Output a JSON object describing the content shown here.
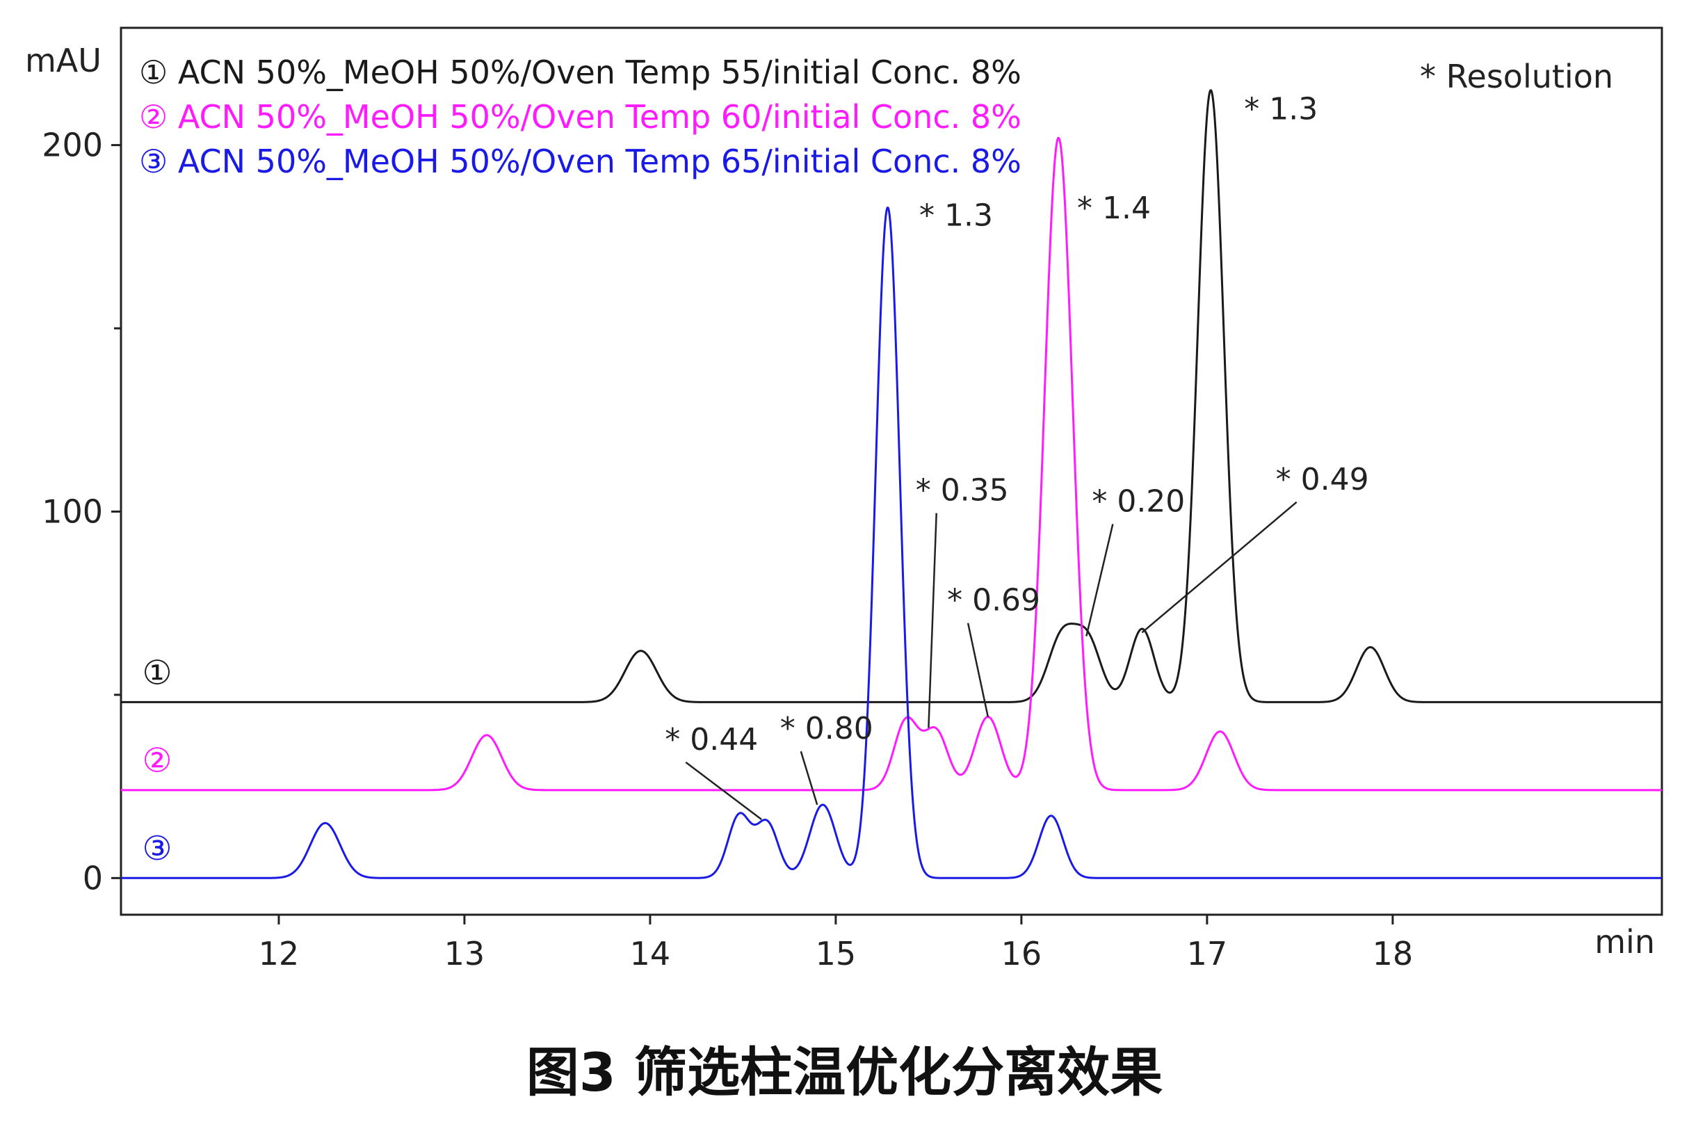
{
  "caption": "图3 筛选柱温优化分离效果",
  "chart_data": {
    "type": "line",
    "title": "",
    "xlabel": "min",
    "ylabel": "mAU",
    "xlim": [
      11.15,
      19.45
    ],
    "ylim": [
      -10,
      232
    ],
    "x_ticks": [
      12,
      13,
      14,
      15,
      16,
      17,
      18
    ],
    "y_ticks_labeled": [
      0,
      100,
      200
    ],
    "y_ticks_minor": [
      50,
      150
    ],
    "grid": false,
    "legend_position": "top-left",
    "legend_note": "* Resolution",
    "series": [
      {
        "name": "① ACN 50%_MeOH 50%/Oven Temp 55/initial Conc. 8%",
        "trace_label": "①",
        "color": "#1a1a1a",
        "baseline": 48,
        "peaks": [
          {
            "rt": 13.95,
            "height": 14,
            "width": 0.085
          },
          {
            "rt": 16.22,
            "height": 18,
            "width": 0.075
          },
          {
            "rt": 16.36,
            "height": 16,
            "width": 0.07
          },
          {
            "rt": 16.65,
            "height": 20,
            "width": 0.065
          },
          {
            "rt": 17.02,
            "height": 167,
            "width": 0.07
          },
          {
            "rt": 17.88,
            "height": 15,
            "width": 0.075
          }
        ]
      },
      {
        "name": "② ACN 50%_MeOH 50%/Oven Temp 60/initial Conc. 8%",
        "trace_label": "②",
        "color": "#ff1aff",
        "baseline": 24,
        "peaks": [
          {
            "rt": 13.12,
            "height": 15,
            "width": 0.08
          },
          {
            "rt": 15.38,
            "height": 19,
            "width": 0.065
          },
          {
            "rt": 15.54,
            "height": 16,
            "width": 0.065
          },
          {
            "rt": 15.82,
            "height": 20,
            "width": 0.07
          },
          {
            "rt": 16.2,
            "height": 178,
            "width": 0.075
          },
          {
            "rt": 17.07,
            "height": 16,
            "width": 0.075
          }
        ]
      },
      {
        "name": "③ ACN 50%_MeOH 50%/Oven Temp 65/initial Conc. 8%",
        "trace_label": "③",
        "color": "#1a1ae6",
        "baseline": 0,
        "peaks": [
          {
            "rt": 12.25,
            "height": 15,
            "width": 0.08
          },
          {
            "rt": 14.48,
            "height": 17,
            "width": 0.06
          },
          {
            "rt": 14.63,
            "height": 15,
            "width": 0.06
          },
          {
            "rt": 14.93,
            "height": 20,
            "width": 0.07
          },
          {
            "rt": 15.28,
            "height": 183,
            "width": 0.065
          },
          {
            "rt": 16.16,
            "height": 17,
            "width": 0.065
          }
        ]
      }
    ],
    "annotations": [
      {
        "text": "* 1.3",
        "x": 15.45,
        "y": 178
      },
      {
        "text": "* 1.4",
        "x": 16.3,
        "y": 180
      },
      {
        "text": "* 1.3",
        "x": 17.2,
        "y": 207
      },
      {
        "text": "* 0.35",
        "x": 15.43,
        "y": 103,
        "point_x": 15.5,
        "point_y": 41
      },
      {
        "text": "* 0.20",
        "x": 16.38,
        "y": 100,
        "point_x": 16.35,
        "point_y": 66
      },
      {
        "text": "* 0.49",
        "x": 17.37,
        "y": 106,
        "point_x": 16.65,
        "point_y": 67
      },
      {
        "text": "* 0.69",
        "x": 15.6,
        "y": 73,
        "point_x": 15.82,
        "point_y": 44
      },
      {
        "text": "* 0.44",
        "x": 14.08,
        "y": 35,
        "point_x": 14.6,
        "point_y": 16
      },
      {
        "text": "* 0.80",
        "x": 14.7,
        "y": 38,
        "point_x": 14.9,
        "point_y": 20
      }
    ]
  }
}
